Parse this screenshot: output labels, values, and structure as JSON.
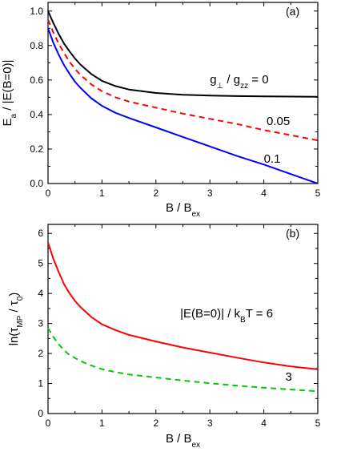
{
  "chart_data": [
    {
      "type": "line",
      "panel_label": "(a)",
      "xlabel": "B / B",
      "xlabel_sub": "ex",
      "ylabel_parts": [
        "E",
        "a",
        " / |E(B=0)|"
      ],
      "xlim": [
        0,
        5
      ],
      "ylim": [
        0,
        1.05
      ],
      "xticks": [
        0,
        1,
        2,
        3,
        4,
        5
      ],
      "yticks": [
        0.0,
        0.2,
        0.4,
        0.6,
        0.8,
        1.0
      ],
      "ytick_labels": [
        "0.0",
        "0.2",
        "0.4",
        "0.6",
        "0.8",
        "1.0"
      ],
      "grid": false,
      "series": [
        {
          "label": "g⊥ / gzz = 0",
          "color": "#000000",
          "dash": "solid",
          "x": [
            0,
            0.1,
            0.2,
            0.3,
            0.4,
            0.5,
            0.6,
            0.8,
            1.0,
            1.25,
            1.5,
            2.0,
            2.5,
            3.0,
            3.5,
            4.0,
            4.5,
            5.0
          ],
          "y": [
            1.0,
            0.93,
            0.865,
            0.81,
            0.765,
            0.725,
            0.69,
            0.635,
            0.595,
            0.565,
            0.545,
            0.525,
            0.515,
            0.51,
            0.507,
            0.505,
            0.504,
            0.503
          ]
        },
        {
          "label": "0.05",
          "color": "#ff0000",
          "dash": "dashed",
          "x": [
            0,
            0.1,
            0.2,
            0.3,
            0.4,
            0.5,
            0.6,
            0.8,
            1.0,
            1.25,
            1.5,
            2.0,
            2.5,
            3.0,
            3.5,
            4.0,
            4.5,
            5.0
          ],
          "y": [
            0.95,
            0.875,
            0.81,
            0.755,
            0.705,
            0.665,
            0.63,
            0.575,
            0.535,
            0.5,
            0.475,
            0.44,
            0.405,
            0.375,
            0.345,
            0.31,
            0.28,
            0.25
          ]
        },
        {
          "label": "0.1",
          "color": "#0000ff",
          "dash": "solid",
          "x": [
            0,
            0.1,
            0.2,
            0.3,
            0.4,
            0.5,
            0.6,
            0.8,
            1.0,
            1.25,
            1.5,
            2.0,
            2.5,
            3.0,
            3.5,
            4.0,
            4.5,
            5.0
          ],
          "y": [
            0.9,
            0.815,
            0.745,
            0.685,
            0.635,
            0.59,
            0.555,
            0.495,
            0.45,
            0.41,
            0.38,
            0.325,
            0.27,
            0.215,
            0.16,
            0.11,
            0.055,
            0.0
          ]
        }
      ],
      "annotations": [
        {
          "parts": [
            "g",
            "⊥",
            " / g",
            "zz",
            " = 0"
          ],
          "x": 3.0,
          "y": 0.58
        },
        {
          "parts": [
            "0.05"
          ],
          "x": 4.05,
          "y": 0.34
        },
        {
          "parts": [
            "0.1"
          ],
          "x": 4.0,
          "y": 0.12
        }
      ]
    },
    {
      "type": "line",
      "panel_label": "(b)",
      "xlabel": "B / B",
      "xlabel_sub": "ex",
      "ylabel_parts": [
        "ln(τ",
        "MP",
        " / τ",
        "0",
        ")"
      ],
      "xlim": [
        0,
        5
      ],
      "ylim": [
        0,
        6.3
      ],
      "xticks": [
        0,
        1,
        2,
        3,
        4,
        5
      ],
      "yticks": [
        0,
        1,
        2,
        3,
        4,
        5,
        6
      ],
      "ytick_labels": [
        "0",
        "1",
        "2",
        "3",
        "4",
        "5",
        "6"
      ],
      "grid": false,
      "series": [
        {
          "label": "|E(B=0)| / kBT = 6",
          "color": "#ff0000",
          "dash": "solid",
          "x": [
            0,
            0.1,
            0.2,
            0.3,
            0.4,
            0.5,
            0.6,
            0.8,
            1.0,
            1.25,
            1.5,
            2.0,
            2.5,
            3.0,
            3.5,
            4.0,
            4.5,
            5.0
          ],
          "y": [
            5.7,
            5.15,
            4.7,
            4.3,
            4.0,
            3.75,
            3.55,
            3.22,
            2.97,
            2.78,
            2.62,
            2.4,
            2.2,
            2.03,
            1.86,
            1.7,
            1.57,
            1.47
          ]
        },
        {
          "label": "3",
          "color": "#00cc00",
          "dash": "dashed",
          "x": [
            0,
            0.1,
            0.2,
            0.3,
            0.4,
            0.5,
            0.6,
            0.8,
            1.0,
            1.25,
            1.5,
            2.0,
            2.5,
            3.0,
            3.5,
            4.0,
            4.5,
            5.0
          ],
          "y": [
            2.85,
            2.55,
            2.3,
            2.1,
            1.95,
            1.85,
            1.75,
            1.6,
            1.48,
            1.38,
            1.3,
            1.2,
            1.1,
            1.01,
            0.93,
            0.86,
            0.8,
            0.74
          ]
        }
      ],
      "annotations": [
        {
          "parts": [
            "|E(B=0)| / k",
            "B",
            "T = 6"
          ],
          "x": 2.45,
          "y": 3.2
        },
        {
          "parts": [
            "3"
          ],
          "x": 4.4,
          "y": 1.1
        }
      ]
    }
  ]
}
